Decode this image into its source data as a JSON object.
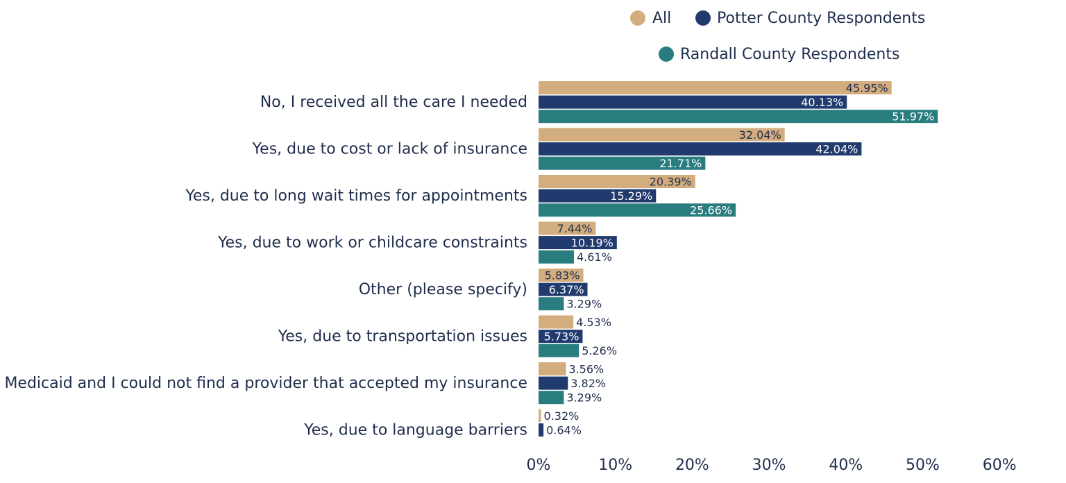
{
  "chart_data": {
    "type": "bar",
    "orientation": "horizontal",
    "title": "",
    "xlabel": "",
    "ylabel": "",
    "xlim": [
      0,
      60
    ],
    "x_ticks": [
      "0%",
      "10%",
      "20%",
      "30%",
      "40%",
      "50%",
      "60%"
    ],
    "x_tick_values": [
      0,
      10,
      20,
      30,
      40,
      50,
      60
    ],
    "grid": false,
    "legend_position": "top-right",
    "categories": [
      "No, I received all the care I needed",
      "Yes, due to cost or lack of insurance",
      "Yes, due to long wait times for appointments",
      "Yes, due to work or childcare constraints",
      "Other (please specify)",
      "Yes, due to transportation issues",
      "Yes, I have Medicaid and I could not find a provider that accepted my insurance",
      "Yes, due to language barriers"
    ],
    "series": [
      {
        "name": "All",
        "color": "#d4ad7e",
        "values": [
          45.95,
          32.04,
          20.39,
          7.44,
          5.83,
          4.53,
          3.56,
          0.32
        ],
        "labels": [
          "45.95%",
          "32.04%",
          "20.39%",
          "7.44%",
          "5.83%",
          "4.53%",
          "3.56%",
          "0.32%"
        ]
      },
      {
        "name": "Potter County Respondents",
        "color": "#213b6e",
        "values": [
          40.13,
          42.04,
          15.29,
          10.19,
          6.37,
          5.73,
          3.82,
          0.64
        ],
        "labels": [
          "40.13%",
          "42.04%",
          "15.29%",
          "10.19%",
          "6.37%",
          "5.73%",
          "3.82%",
          "0.64%"
        ]
      },
      {
        "name": "Randall County Respondents",
        "color": "#2a7d7f",
        "values": [
          51.97,
          21.71,
          25.66,
          4.61,
          3.29,
          5.26,
          3.29,
          null
        ],
        "labels": [
          "51.97%",
          "21.71%",
          "25.66%",
          "4.61%",
          "3.29%",
          "5.26%",
          "3.29%",
          null
        ]
      }
    ]
  }
}
